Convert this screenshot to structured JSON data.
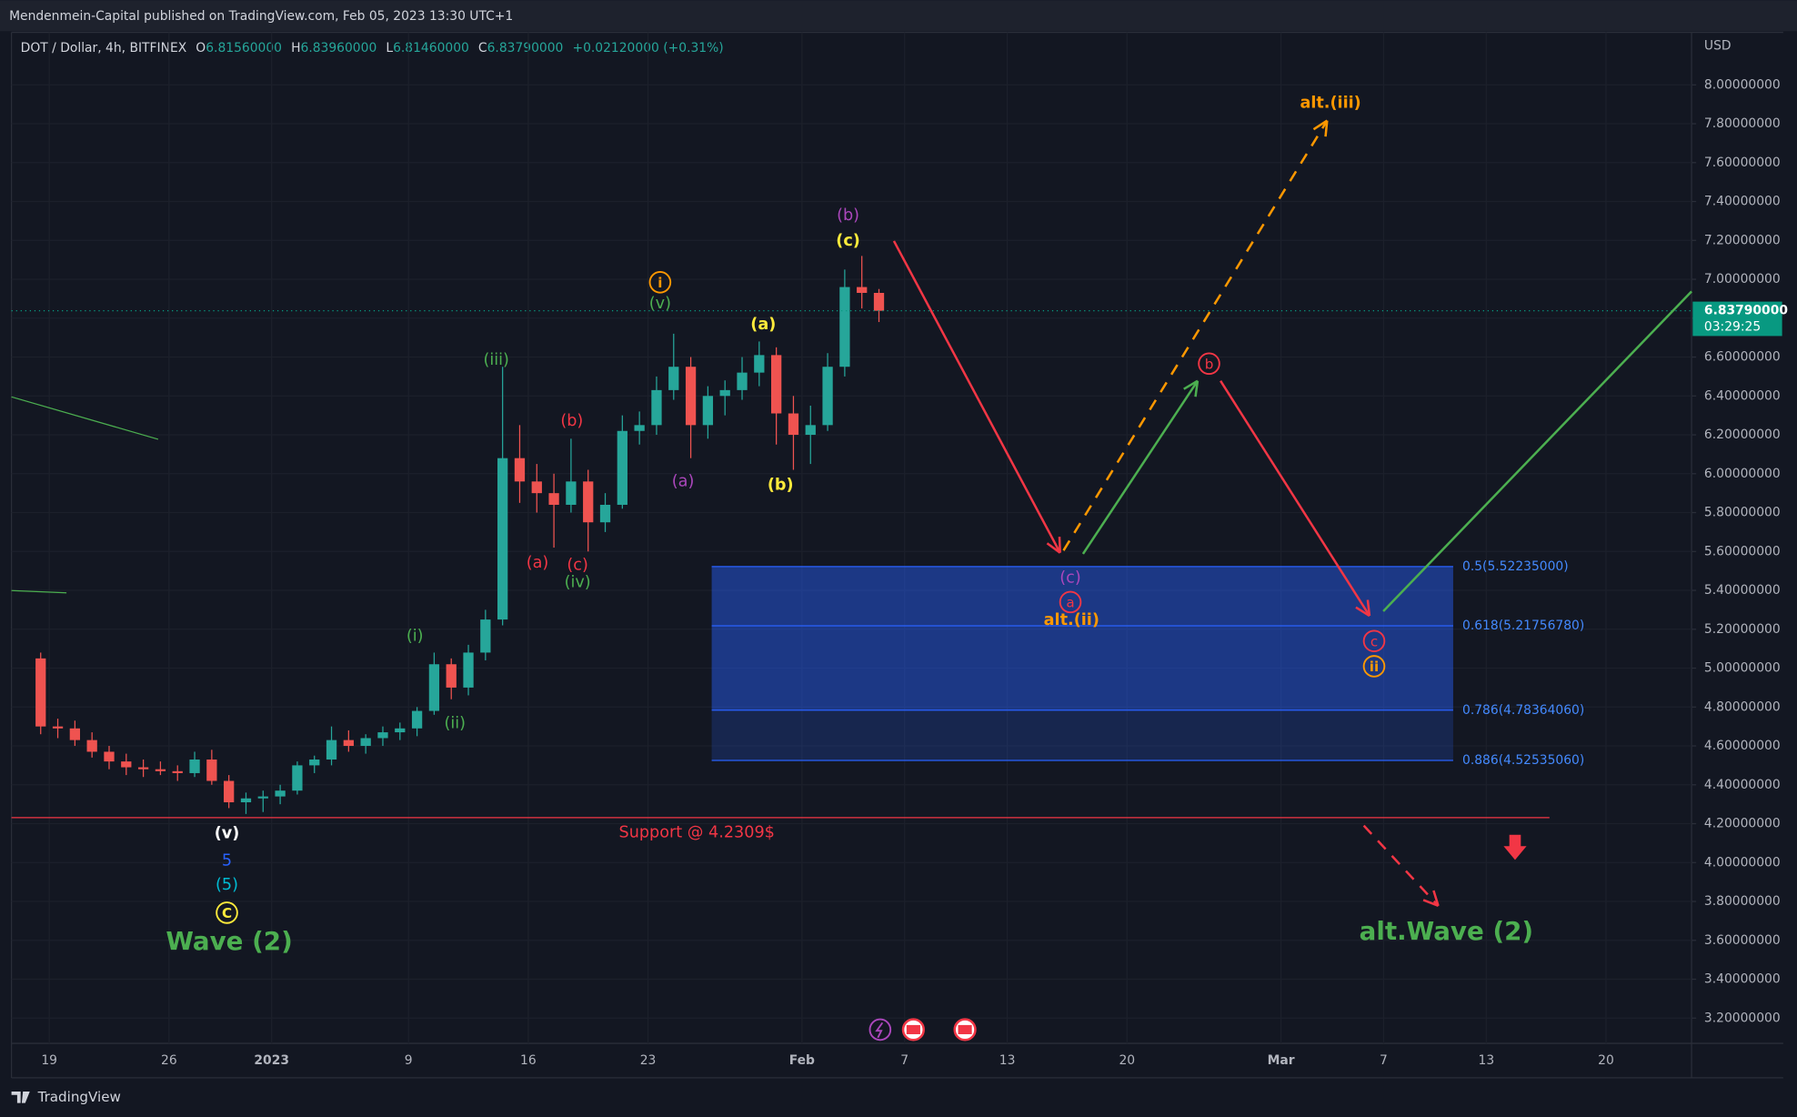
{
  "header": {
    "publisher": "Mendenmein-Capital published on TradingView.com, Feb 05, 2023 13:30 UTC+1",
    "footer": "TradingView"
  },
  "chart_data": {
    "type": "candlestick",
    "symbol": "DOT / Dollar, 4h, BITFINEX",
    "ohlc_legend": [
      {
        "label": "O",
        "value": "6.81560000"
      },
      {
        "label": "H",
        "value": "6.83960000"
      },
      {
        "label": "L",
        "value": "6.81460000"
      },
      {
        "label": "C",
        "value": "6.83790000"
      }
    ],
    "change": "+0.02120000 (+0.31%)",
    "currency": "USD",
    "up_color": "#26a69a",
    "down_color": "#ef5350",
    "dates": [
      "2022-12-18",
      "2022-12-19",
      "2022-12-20",
      "2022-12-21",
      "2022-12-22",
      "2022-12-23",
      "2022-12-24",
      "2022-12-25",
      "2022-12-26",
      "2022-12-27",
      "2022-12-28",
      "2022-12-29",
      "2022-12-30",
      "2022-12-31",
      "2023-01-01",
      "2023-01-02",
      "2023-01-03",
      "2023-01-04",
      "2023-01-05",
      "2023-01-06",
      "2023-01-07",
      "2023-01-08",
      "2023-01-09",
      "2023-01-10",
      "2023-01-11",
      "2023-01-12",
      "2023-01-13",
      "2023-01-14",
      "2023-01-15",
      "2023-01-16",
      "2023-01-17",
      "2023-01-18",
      "2023-01-19",
      "2023-01-20",
      "2023-01-21",
      "2023-01-22",
      "2023-01-23",
      "2023-01-24",
      "2023-01-25",
      "2023-01-26",
      "2023-01-27",
      "2023-01-28",
      "2023-01-29",
      "2023-01-30",
      "2023-01-31",
      "2023-02-01",
      "2023-02-02",
      "2023-02-03",
      "2023-02-04",
      "2023-02-05"
    ],
    "open": [
      5.05,
      4.7,
      4.69,
      4.63,
      4.57,
      4.52,
      4.49,
      4.48,
      4.47,
      4.46,
      4.53,
      4.42,
      4.31,
      4.33,
      4.34,
      4.37,
      4.5,
      4.53,
      4.63,
      4.6,
      4.64,
      4.67,
      4.69,
      4.78,
      5.02,
      4.9,
      5.08,
      5.25,
      6.08,
      5.96,
      5.9,
      5.84,
      5.96,
      5.75,
      5.84,
      6.22,
      6.25,
      6.43,
      6.55,
      6.25,
      6.4,
      6.43,
      6.52,
      6.61,
      6.31,
      6.2,
      6.25,
      6.55,
      6.96,
      6.93
    ],
    "high": [
      5.08,
      4.74,
      4.73,
      4.67,
      4.6,
      4.56,
      4.53,
      4.52,
      4.5,
      4.57,
      4.58,
      4.45,
      4.36,
      4.37,
      4.4,
      4.52,
      4.55,
      4.7,
      4.68,
      4.66,
      4.7,
      4.72,
      4.8,
      5.08,
      5.05,
      5.12,
      5.3,
      6.55,
      6.25,
      6.05,
      6.0,
      6.18,
      6.02,
      5.9,
      6.3,
      6.32,
      6.5,
      6.72,
      6.6,
      6.45,
      6.48,
      6.6,
      6.68,
      6.65,
      6.4,
      6.35,
      6.62,
      7.05,
      7.12,
      6.95
    ],
    "low": [
      4.66,
      4.64,
      4.6,
      4.54,
      4.48,
      4.45,
      4.44,
      4.45,
      4.42,
      4.44,
      4.4,
      4.28,
      4.25,
      4.26,
      4.3,
      4.35,
      4.46,
      4.5,
      4.57,
      4.56,
      4.6,
      4.63,
      4.65,
      4.76,
      4.84,
      4.86,
      5.04,
      5.22,
      5.85,
      5.8,
      5.62,
      5.8,
      5.6,
      5.7,
      5.82,
      6.15,
      6.2,
      6.38,
      6.08,
      6.18,
      6.3,
      6.38,
      6.45,
      6.15,
      6.02,
      6.05,
      6.22,
      6.5,
      6.85,
      6.78
    ],
    "close": [
      4.7,
      4.69,
      4.63,
      4.57,
      4.52,
      4.49,
      4.48,
      4.47,
      4.46,
      4.53,
      4.42,
      4.31,
      4.33,
      4.34,
      4.37,
      4.5,
      4.53,
      4.63,
      4.6,
      4.64,
      4.67,
      4.69,
      4.78,
      5.02,
      4.9,
      5.08,
      5.25,
      6.08,
      5.96,
      5.9,
      5.84,
      5.96,
      5.75,
      5.84,
      6.22,
      6.25,
      6.43,
      6.55,
      6.25,
      6.4,
      6.43,
      6.52,
      6.61,
      6.31,
      6.2,
      6.25,
      6.55,
      6.96,
      6.93,
      6.8379
    ],
    "last_price": {
      "value": 6.8379,
      "label": "6.83790000",
      "countdown": "03:29:25",
      "color": "#089981"
    },
    "xlim": [
      "2022-12-16T19:00",
      "2023-03-25T00:00"
    ],
    "xticks": [
      {
        "value": "2022-12-19",
        "label": "19"
      },
      {
        "value": "2022-12-26",
        "label": "26"
      },
      {
        "value": "2023-01-01",
        "label": "2023"
      },
      {
        "value": "2023-01-09",
        "label": "9"
      },
      {
        "value": "2023-01-16",
        "label": "16"
      },
      {
        "value": "2023-01-23",
        "label": "23"
      },
      {
        "value": "2023-02-01",
        "label": "Feb"
      },
      {
        "value": "2023-02-07",
        "label": "7"
      },
      {
        "value": "2023-02-13",
        "label": "13"
      },
      {
        "value": "2023-02-20",
        "label": "20"
      },
      {
        "value": "2023-03-01",
        "label": "Mar"
      },
      {
        "value": "2023-03-07",
        "label": "7"
      },
      {
        "value": "2023-03-13",
        "label": "13"
      },
      {
        "value": "2023-03-20",
        "label": "20"
      }
    ],
    "ylim": [
      3.07,
      8.27
    ],
    "yticks": [
      {
        "value": 3.2,
        "label": "3.20000000"
      },
      {
        "value": 3.4,
        "label": "3.40000000"
      },
      {
        "value": 3.6,
        "label": "3.60000000"
      },
      {
        "value": 3.8,
        "label": "3.80000000"
      },
      {
        "value": 4.0,
        "label": "4.00000000"
      },
      {
        "value": 4.2,
        "label": "4.20000000"
      },
      {
        "value": 4.4,
        "label": "4.40000000"
      },
      {
        "value": 4.6,
        "label": "4.60000000"
      },
      {
        "value": 4.8,
        "label": "4.80000000"
      },
      {
        "value": 5.0,
        "label": "5.00000000"
      },
      {
        "value": 5.2,
        "label": "5.20000000"
      },
      {
        "value": 5.4,
        "label": "5.40000000"
      },
      {
        "value": 5.6,
        "label": "5.60000000"
      },
      {
        "value": 5.8,
        "label": "5.80000000"
      },
      {
        "value": 6.0,
        "label": "6.00000000"
      },
      {
        "value": 6.2,
        "label": "6.20000000"
      },
      {
        "value": 6.4,
        "label": "6.40000000"
      },
      {
        "value": 6.6,
        "label": "6.60000000"
      },
      {
        "value": 6.8,
        "label": "6.80000000"
      },
      {
        "value": 7.0,
        "label": "7.00000000"
      },
      {
        "value": 7.2,
        "label": "7.20000000"
      },
      {
        "value": 7.4,
        "label": "7.40000000"
      },
      {
        "value": 7.6,
        "label": "7.60000000"
      },
      {
        "value": 7.8,
        "label": "7.80000000"
      },
      {
        "value": 8.0,
        "label": "8.00000000"
      }
    ],
    "support": {
      "value": 4.2309,
      "label": "Support @ 4.2309$",
      "color": "#f23645"
    },
    "fib_levels": [
      {
        "value": 5.52235,
        "label": "0.5(5.52235000)"
      },
      {
        "value": 5.2175678,
        "label": "0.618(5.21756780)"
      },
      {
        "value": 4.7836406,
        "label": "0.786(4.78364060)"
      },
      {
        "value": 4.5253506,
        "label": "0.886(4.52535060)"
      }
    ],
    "fib_color": "#2962ff",
    "annotations": [
      {
        "text": "(i)",
        "color": "#4caf50"
      },
      {
        "text": "(ii)",
        "color": "#4caf50"
      },
      {
        "text": "(iii)",
        "color": "#4caf50"
      },
      {
        "text": "(iv)",
        "color": "#4caf50"
      },
      {
        "text": "(v)",
        "color": "#4caf50"
      },
      {
        "text": "i",
        "color": "#ff9800",
        "circled": true
      },
      {
        "text": "(a)",
        "color": "#f23645"
      },
      {
        "text": "(b)",
        "color": "#f23645"
      },
      {
        "text": "(c)",
        "color": "#f23645"
      },
      {
        "text": "(a)",
        "color": "#ab47bc"
      },
      {
        "text": "(b)",
        "color": "#ab47bc"
      },
      {
        "text": "(c)",
        "color": "#ab47bc"
      },
      {
        "text": "(a)",
        "color": "#ffeb3b"
      },
      {
        "text": "(b)",
        "color": "#ffeb3b"
      },
      {
        "text": "(c)",
        "color": "#ffeb3b"
      },
      {
        "text": "(v)",
        "color": "#ffffff"
      },
      {
        "text": "5",
        "color": "#2962ff"
      },
      {
        "text": "(5)",
        "color": "#00bcd4"
      },
      {
        "text": "C",
        "color": "#ffeb3b",
        "circled": true
      },
      {
        "text": "Wave (2)",
        "color": "#4caf50",
        "big": true
      },
      {
        "text": "a",
        "color": "#f23645",
        "circled": true
      },
      {
        "text": "alt.(ii)",
        "color": "#ff9800"
      },
      {
        "text": "b",
        "color": "#f23645",
        "circled": true
      },
      {
        "text": "c",
        "color": "#f23645",
        "circled": true
      },
      {
        "text": "ii",
        "color": "#ff9800",
        "circled": true
      },
      {
        "text": "alt.(iii)",
        "color": "#ff9800"
      },
      {
        "text": "alt.Wave (2)",
        "color": "#4caf50",
        "big": true
      }
    ]
  }
}
